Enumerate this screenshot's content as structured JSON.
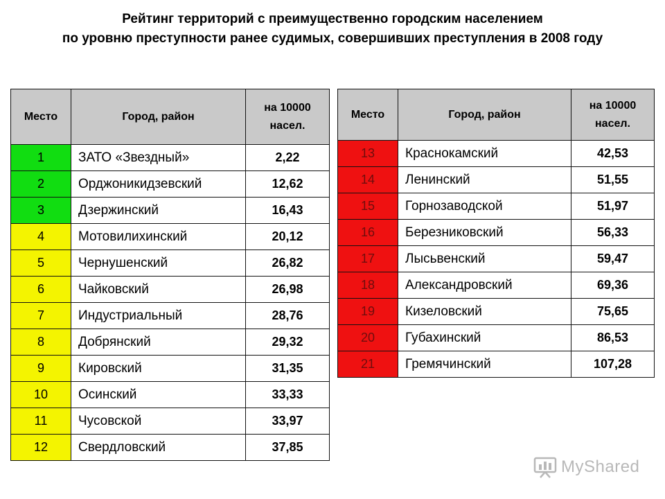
{
  "title": {
    "line1": "Рейтинг территорий с преимущественно городским населением",
    "line2": "по уровню преступности ранее судимых, совершивших преступления в 2008 году"
  },
  "headers": {
    "place": "Место",
    "city": "Город, район",
    "value_line1": "на 10000",
    "value_line2": "насел."
  },
  "colors": {
    "green": "#11dd11",
    "yellow": "#f4f400",
    "red": "#ef1111",
    "header_bg": "#c9c9c9"
  },
  "left_rows": [
    {
      "place": "1",
      "city": "ЗАТО «Звездный»",
      "value": "2,22",
      "color": "green"
    },
    {
      "place": "2",
      "city": "Орджоникидзевский",
      "value": "12,62",
      "color": "green"
    },
    {
      "place": "3",
      "city": "Дзержинский",
      "value": "16,43",
      "color": "green"
    },
    {
      "place": "4",
      "city": "Мотовилихинский",
      "value": "20,12",
      "color": "yellow"
    },
    {
      "place": "5",
      "city": "Чернушенский",
      "value": "26,82",
      "color": "yellow"
    },
    {
      "place": "6",
      "city": "Чайковский",
      "value": "26,98",
      "color": "yellow"
    },
    {
      "place": "7",
      "city": "Индустриальный",
      "value": "28,76",
      "color": "yellow"
    },
    {
      "place": "8",
      "city": "Добрянский",
      "value": "29,32",
      "color": "yellow"
    },
    {
      "place": "9",
      "city": "Кировский",
      "value": "31,35",
      "color": "yellow"
    },
    {
      "place": "10",
      "city": "Осинский",
      "value": "33,33",
      "color": "yellow"
    },
    {
      "place": "11",
      "city": "Чусовской",
      "value": "33,97",
      "color": "yellow"
    },
    {
      "place": "12",
      "city": "Свердловский",
      "value": "37,85",
      "color": "yellow"
    }
  ],
  "right_rows": [
    {
      "place": "13",
      "city": "Краснокамский",
      "value": "42,53",
      "color": "red"
    },
    {
      "place": "14",
      "city": "Ленинский",
      "value": "51,55",
      "color": "red"
    },
    {
      "place": "15",
      "city": "Горнозаводской",
      "value": "51,97",
      "color": "red"
    },
    {
      "place": "16",
      "city": "Березниковский",
      "value": "56,33",
      "color": "red"
    },
    {
      "place": "17",
      "city": "Лысьвенский",
      "value": "59,47",
      "color": "red"
    },
    {
      "place": "18",
      "city": "Александровский",
      "value": "69,36",
      "color": "red"
    },
    {
      "place": "19",
      "city": "Кизеловский",
      "value": "75,65",
      "color": "red"
    },
    {
      "place": "20",
      "city": "Губахинский",
      "value": "86,53",
      "color": "red"
    },
    {
      "place": "21",
      "city": "Гремячинский",
      "value": "107,28",
      "color": "red"
    }
  ],
  "watermark": {
    "text": "MyShared",
    "icon": "presentation-board-icon"
  }
}
